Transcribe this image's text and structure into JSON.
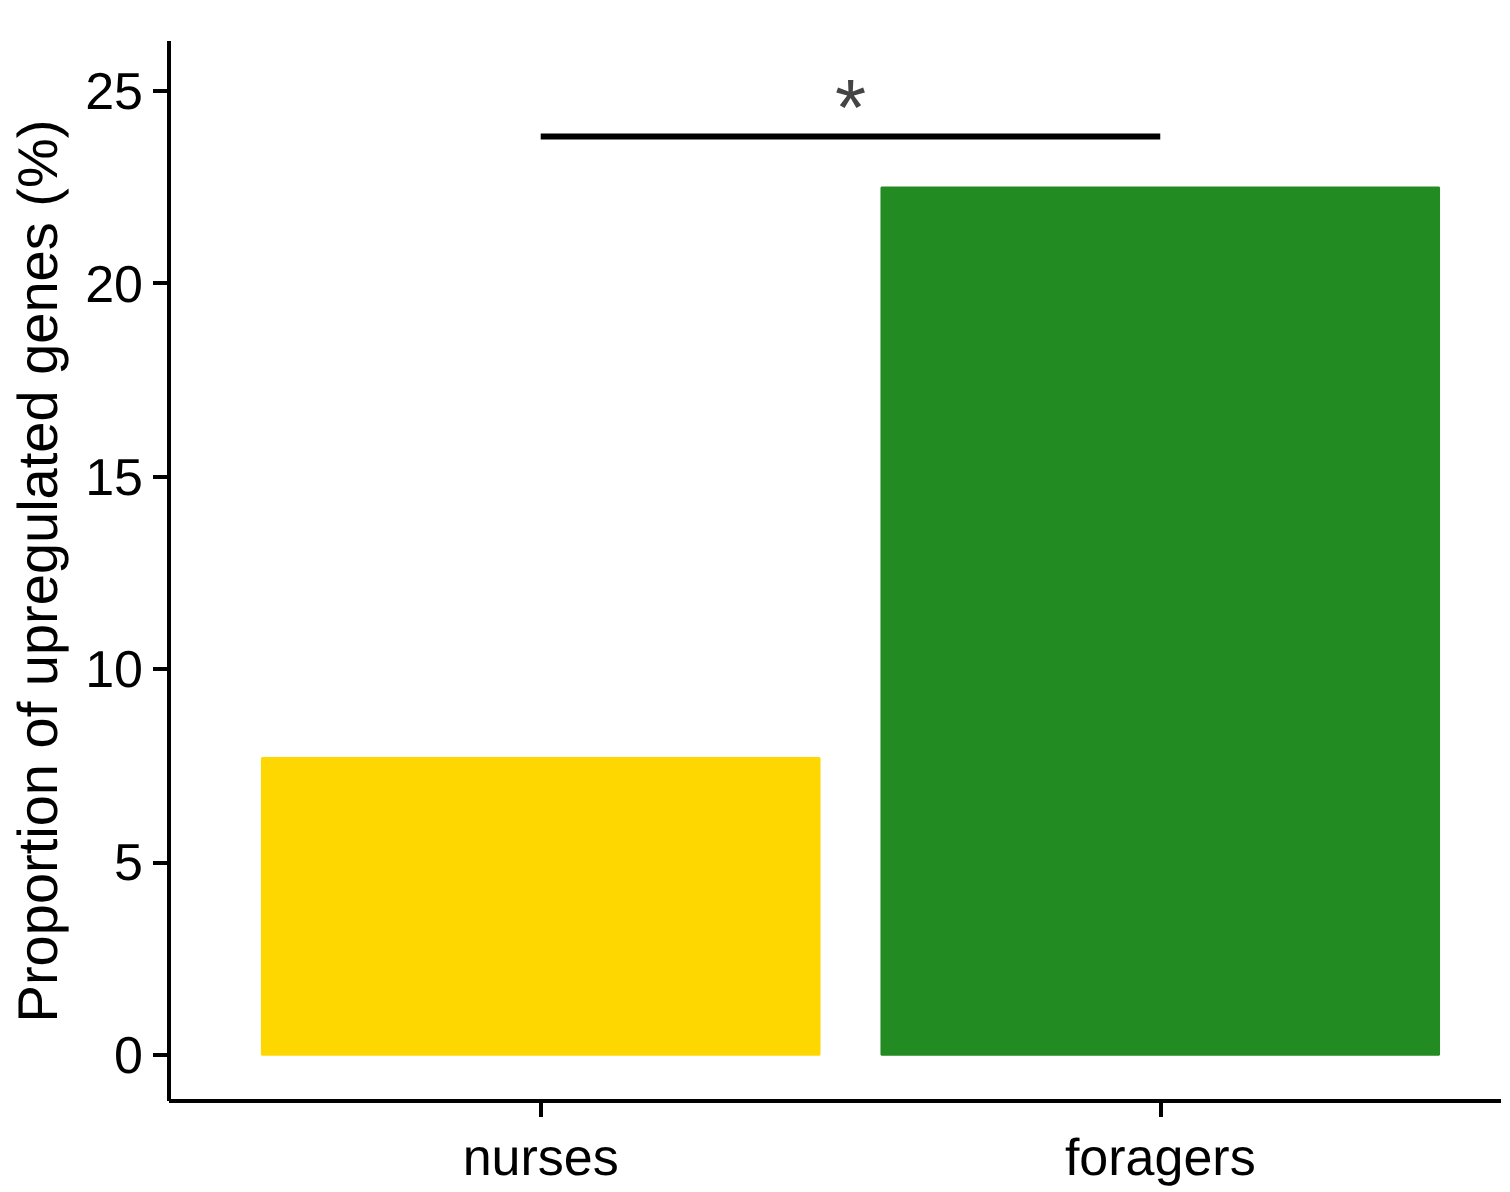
{
  "chart_data": {
    "type": "bar",
    "ylabel": "Proportion of upregulated genes (%)",
    "categories": [
      "nurses",
      "foragers"
    ],
    "values": [
      7.7,
      22.5
    ],
    "colors": [
      "#ffd700",
      "#228b22"
    ],
    "ylim": [
      -1.2,
      26.3
    ],
    "yticks": [
      0,
      5,
      10,
      15,
      20,
      25
    ],
    "grid": false,
    "annotations": [
      "*"
    ]
  }
}
